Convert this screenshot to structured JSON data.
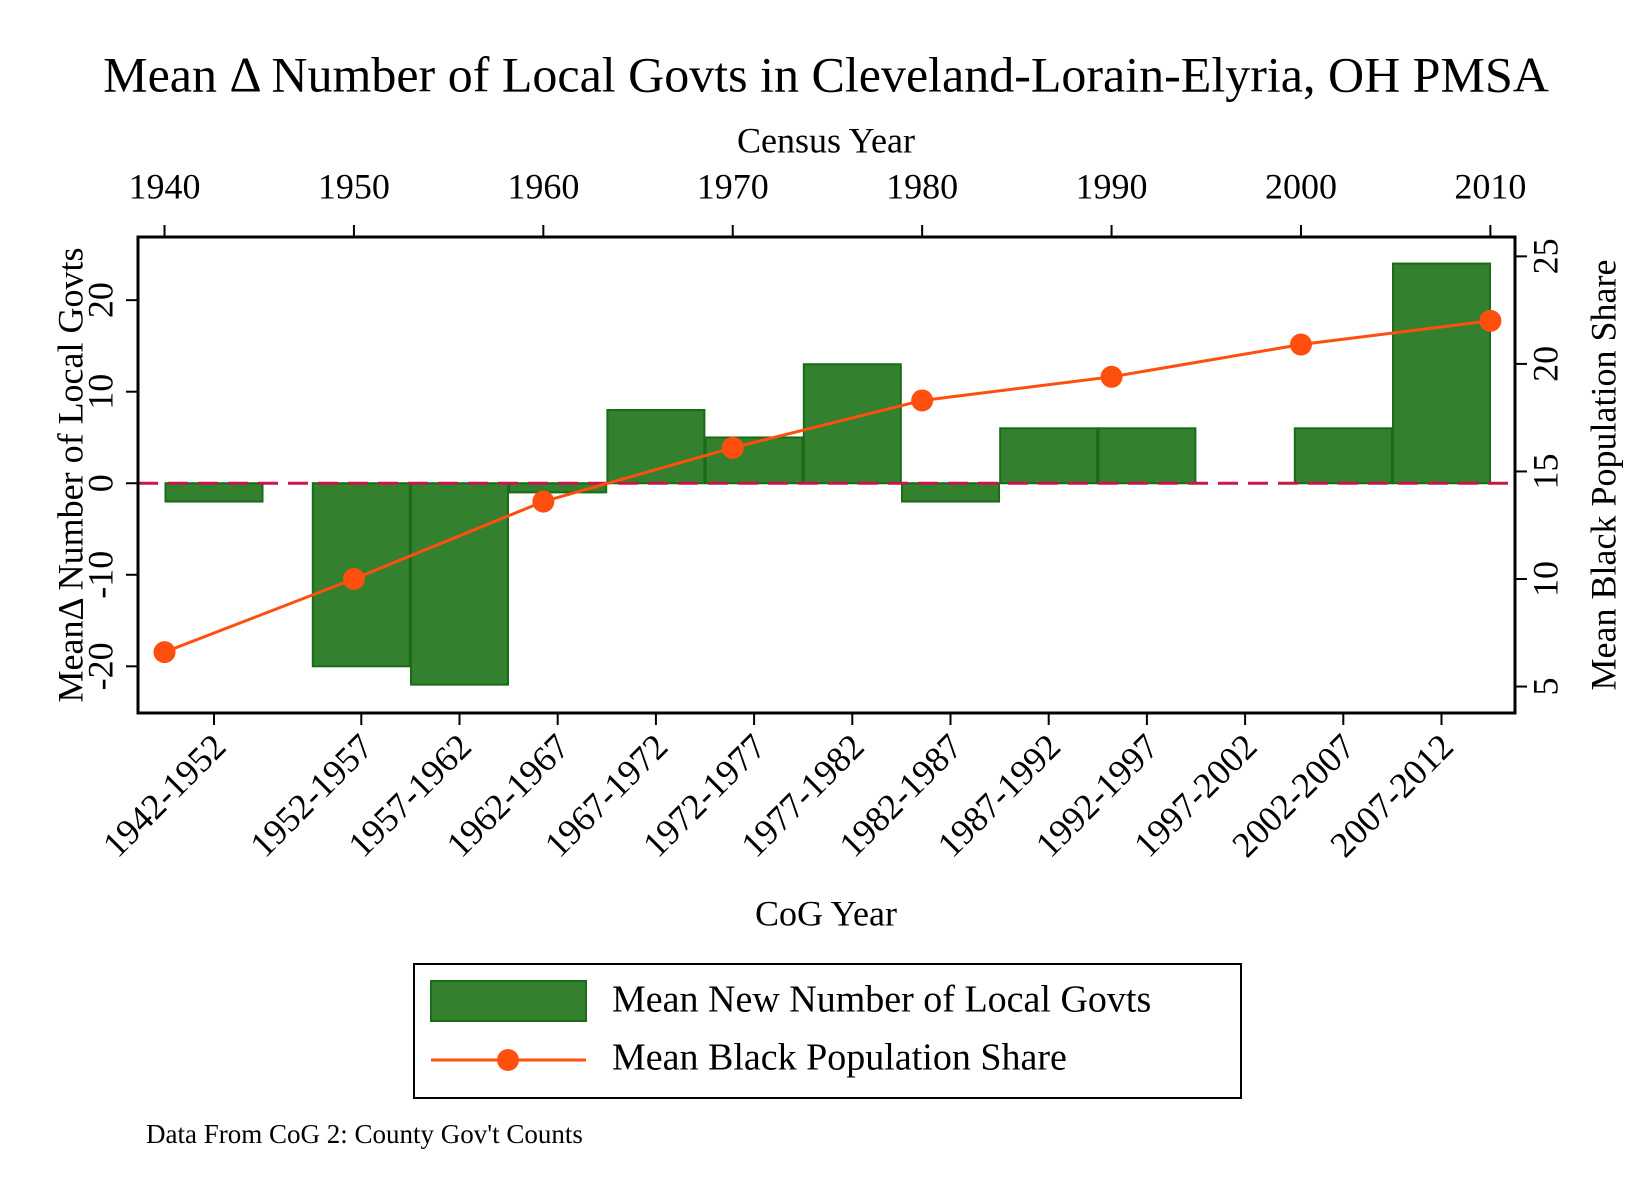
{
  "chart_data": {
    "type": "bar",
    "title": "Mean Δ Number of Local Govts in Cleveland-Lorain-Elyria, OH PMSA",
    "x_label": "CoG Year",
    "top_x_label": "Census Year",
    "y_label": "MeanΔ Number of Local Govts",
    "y2_label": "Mean Black Population Share",
    "note": "Data From CoG 2: County Gov't Counts",
    "categories": [
      "1942-1952",
      "1952-1957",
      "1957-1962",
      "1962-1967",
      "1967-1972",
      "1972-1977",
      "1977-1982",
      "1982-1987",
      "1987-1992",
      "1992-1997",
      "1997-2002",
      "2002-2007",
      "2007-2012"
    ],
    "series": [
      {
        "name": "Mean New Number of Local Govts",
        "type": "bar",
        "color": "#33812f",
        "edge_color": "#1b6a18",
        "values": [
          -2,
          -20,
          -22,
          -1,
          8,
          5,
          13,
          -2,
          6,
          6,
          0,
          6,
          24
        ]
      },
      {
        "name": "Mean Black Population Share",
        "type": "line",
        "axis": "y2",
        "color": "#ff4f0f",
        "x": [
          1940,
          1950,
          1960,
          1970,
          1980,
          1990,
          2000,
          2010
        ],
        "values": [
          6.6,
          10,
          13.6,
          16.1,
          18.3,
          19.4,
          20.9,
          22
        ]
      }
    ],
    "ylim": [
      -25.1,
      26.9
    ],
    "yticks": [
      -20,
      -10,
      0,
      10,
      20
    ],
    "y2lim": [
      3.77,
      25.9
    ],
    "y2ticks": [
      5,
      10,
      15,
      20,
      25
    ],
    "top_xlim": [
      1938.6,
      2011.3
    ],
    "top_xticks": [
      1940,
      1950,
      1960,
      1970,
      1980,
      1990,
      2000,
      2010
    ],
    "reference_line": {
      "value": 0,
      "color": "#c8164a"
    },
    "legend": "bottom"
  }
}
